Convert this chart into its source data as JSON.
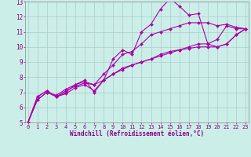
{
  "xlabel": "Windchill (Refroidissement éolien,°C)",
  "background_color": "#cceee8",
  "grid_color": "#aacccc",
  "line_color": "#aa00aa",
  "xmin": 0,
  "xmax": 23,
  "ymin": 5,
  "ymax": 13,
  "series": [
    [
      5.0,
      6.7,
      7.1,
      6.7,
      6.9,
      7.3,
      7.5,
      7.1,
      7.8,
      9.2,
      9.8,
      9.5,
      11.0,
      11.5,
      12.5,
      13.2,
      12.7,
      12.1,
      12.2,
      10.2,
      10.5,
      11.4,
      11.2,
      11.2
    ],
    [
      5.0,
      6.7,
      7.1,
      6.7,
      7.0,
      7.5,
      7.7,
      7.5,
      8.2,
      8.8,
      9.5,
      9.7,
      10.2,
      10.8,
      11.0,
      11.2,
      11.4,
      11.6,
      11.6,
      11.6,
      11.4,
      11.5,
      11.3,
      11.2
    ],
    [
      5.0,
      6.5,
      7.0,
      6.8,
      7.2,
      7.5,
      7.8,
      7.0,
      7.8,
      8.2,
      8.5,
      8.8,
      9.0,
      9.2,
      9.5,
      9.7,
      9.8,
      9.9,
      10.0,
      10.0,
      10.0,
      10.2,
      10.8,
      11.2
    ],
    [
      5.0,
      6.5,
      7.0,
      6.7,
      7.1,
      7.4,
      7.6,
      7.5,
      7.8,
      8.2,
      8.6,
      8.8,
      9.0,
      9.2,
      9.4,
      9.6,
      9.8,
      10.0,
      10.2,
      10.2,
      10.0,
      10.2,
      10.8,
      11.2
    ]
  ]
}
